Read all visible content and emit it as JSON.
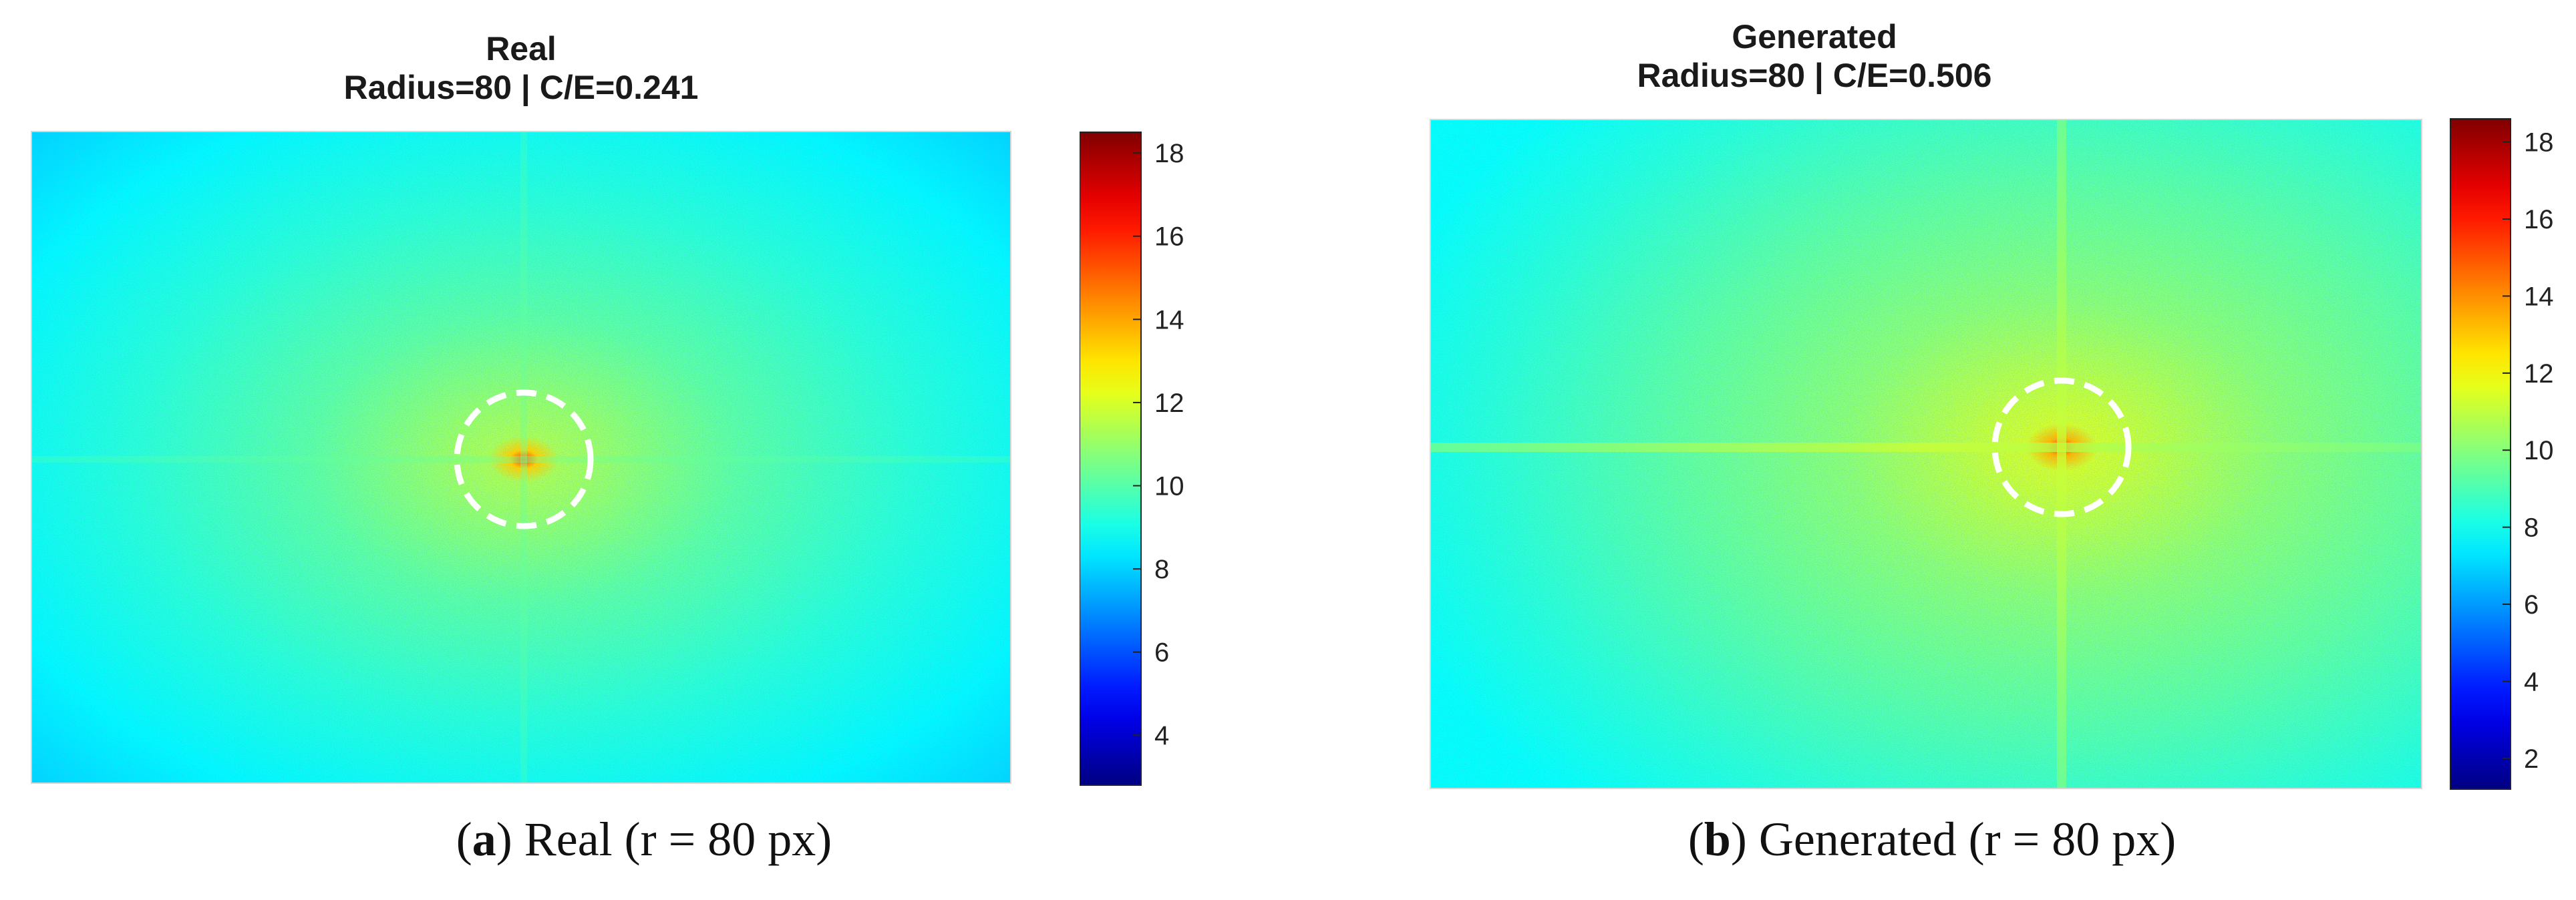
{
  "chart_data": [
    {
      "type": "heatmap",
      "title": "Real",
      "subtitle": "Radius=80 | C/E=0.241",
      "caption_letter": "a",
      "caption_text": "Real (r = 80 px)",
      "radius": 80,
      "ce_ratio": 0.241,
      "colorbar": {
        "min": 2.8,
        "max": 18.5,
        "ticks": [
          4,
          6,
          8,
          10,
          12,
          14,
          16,
          18
        ]
      },
      "colormap": "jet",
      "center_value": 15.5,
      "background_value": 8.6,
      "cross_lines": "faint"
    },
    {
      "type": "heatmap",
      "title": "Generated",
      "subtitle": "Radius=80 | C/E=0.506",
      "caption_letter": "b",
      "caption_text": "Generated (r = 80 px)",
      "radius": 80,
      "ce_ratio": 0.506,
      "colorbar": {
        "min": 1.2,
        "max": 18.6,
        "ticks": [
          2,
          4,
          6,
          8,
          10,
          12,
          14,
          16,
          18
        ]
      },
      "colormap": "jet",
      "center_value": 15.5,
      "background_value": 8.4,
      "cross_lines": "strong"
    }
  ]
}
